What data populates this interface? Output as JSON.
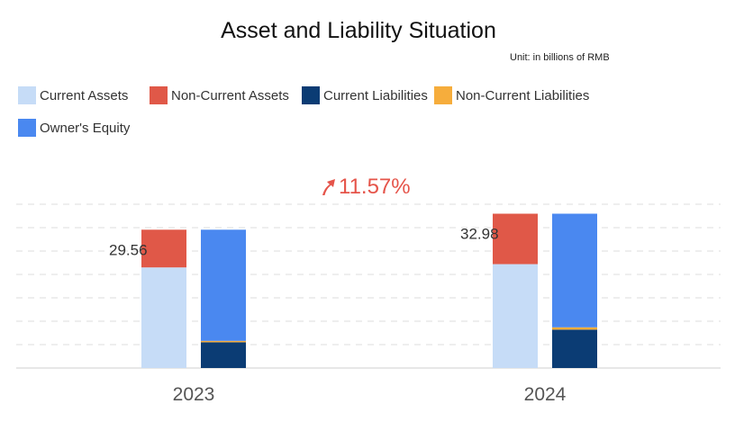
{
  "title": "Asset and Liability Situation",
  "unit": "Unit: in billions of RMB",
  "growth": {
    "label": "11.57%",
    "icon": "up-arrow-icon",
    "color": "#e5544a"
  },
  "legend": [
    {
      "label": "Current Assets",
      "color": "#c6dcf7"
    },
    {
      "label": "Non-Current Assets",
      "color": "#e05848"
    },
    {
      "label": "Current Liabilities",
      "color": "#0b3c74"
    },
    {
      "label": "Non-Current Liabilities",
      "color": "#f6ad3c"
    },
    {
      "label": "Owner's Equity",
      "color": "#4a88f0"
    }
  ],
  "chart_data": {
    "type": "bar",
    "stacked": true,
    "categories": [
      "2023",
      "2024"
    ],
    "grid": true,
    "ylim": [
      0,
      35
    ],
    "stacks": [
      {
        "stack": "assets",
        "series": [
          {
            "name": "Current Assets",
            "values": [
              21.5,
              22.2
            ]
          },
          {
            "name": "Non-Current Assets",
            "values": [
              8.06,
              10.78
            ]
          }
        ],
        "totals": [
          "29.56",
          "32.98"
        ]
      },
      {
        "stack": "liabilities-equity",
        "series": [
          {
            "name": "Current Liabilities",
            "values": [
              5.5,
              8.2
            ]
          },
          {
            "name": "Non-Current Liabilities",
            "values": [
              0.3,
              0.5
            ]
          },
          {
            "name": "Owner's Equity",
            "values": [
              23.76,
              24.28
            ]
          }
        ]
      }
    ]
  }
}
